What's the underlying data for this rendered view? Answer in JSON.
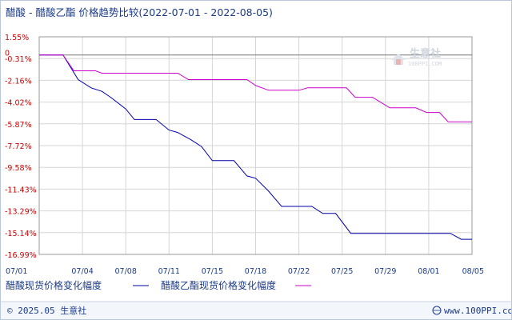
{
  "chart_data": {
    "type": "line",
    "title": "醋酸 - 醋酸乙酯 价格趋势比较(2022-07-01 - 2022-08-05)",
    "x": [
      "07/01",
      "07/04",
      "07/08",
      "07/11",
      "07/15",
      "07/18",
      "07/22",
      "07/25",
      "07/29",
      "08/01",
      "08/05"
    ],
    "y_ticks": [
      "1.55%",
      "-0.31%",
      "-2.16%",
      "-4.02%",
      "-5.87%",
      "-7.72%",
      "-9.58%",
      "-11.43%",
      "-13.29%",
      "-15.14%",
      "-16.99%"
    ],
    "ylim": [
      -16.99,
      1.55
    ],
    "baseline_label": "0",
    "grid": true,
    "legend_position": "bottom-left",
    "series": [
      {
        "name": "醋酸现货价格变化幅度",
        "color": "#0000aa",
        "points": [
          [
            0,
            0
          ],
          [
            0.55,
            0
          ],
          [
            0.9,
            -2.1
          ],
          [
            1.2,
            -2.8
          ],
          [
            1.45,
            -3.1
          ],
          [
            1.65,
            -3.6
          ],
          [
            2.0,
            -4.6
          ],
          [
            2.2,
            -5.5
          ],
          [
            2.7,
            -5.5
          ],
          [
            3.0,
            -6.4
          ],
          [
            3.2,
            -6.6
          ],
          [
            3.5,
            -7.2
          ],
          [
            3.75,
            -7.8
          ],
          [
            4.0,
            -9.0
          ],
          [
            4.5,
            -9.0
          ],
          [
            4.8,
            -10.3
          ],
          [
            5.0,
            -10.5
          ],
          [
            5.3,
            -11.6
          ],
          [
            5.6,
            -12.9
          ],
          [
            6.3,
            -12.9
          ],
          [
            6.55,
            -13.5
          ],
          [
            6.85,
            -13.5
          ],
          [
            7.2,
            -15.2
          ],
          [
            9.5,
            -15.2
          ],
          [
            9.75,
            -15.7
          ],
          [
            10,
            -15.7
          ]
        ]
      },
      {
        "name": "醋酸乙酯现货价格变化幅度",
        "color": "#cc00cc",
        "points": [
          [
            0,
            0
          ],
          [
            0.55,
            0
          ],
          [
            0.8,
            -1.35
          ],
          [
            1.3,
            -1.35
          ],
          [
            1.45,
            -1.55
          ],
          [
            3.2,
            -1.55
          ],
          [
            3.45,
            -2.1
          ],
          [
            4.8,
            -2.1
          ],
          [
            5.0,
            -2.6
          ],
          [
            5.3,
            -3.0
          ],
          [
            6.0,
            -3.0
          ],
          [
            6.2,
            -2.8
          ],
          [
            7.1,
            -2.8
          ],
          [
            7.3,
            -3.6
          ],
          [
            7.7,
            -3.6
          ],
          [
            8.1,
            -4.5
          ],
          [
            8.7,
            -4.5
          ],
          [
            8.95,
            -4.9
          ],
          [
            9.25,
            -4.9
          ],
          [
            9.45,
            -5.7
          ],
          [
            10,
            -5.7
          ]
        ]
      }
    ]
  },
  "watermark": {
    "name": "生意社",
    "url": "100PPI.COM"
  },
  "footer": {
    "copyright": "© 2025.05 生意社",
    "site": "www.100PPI.com"
  }
}
